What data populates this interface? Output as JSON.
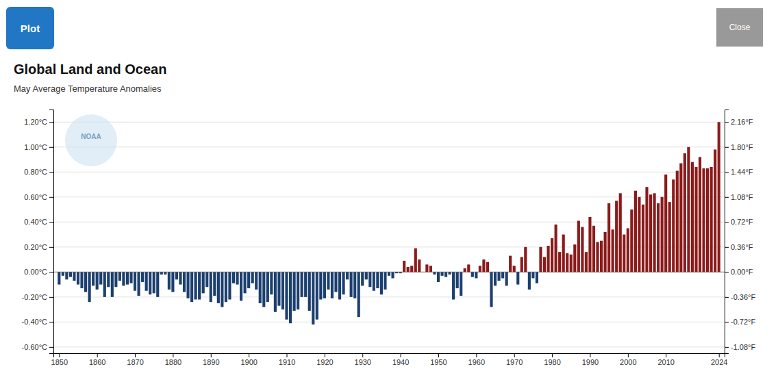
{
  "chart_data": {
    "type": "bar",
    "title": "Global Land and Ocean",
    "subtitle": "May Average Temperature Anomalies",
    "annotations": [
      "Plot",
      "Close",
      "NOAA"
    ],
    "grid": true,
    "xlim": [
      1848.5,
      2025.5
    ],
    "xticks": [
      1850,
      1860,
      1870,
      1880,
      1890,
      1900,
      1910,
      1920,
      1930,
      1940,
      1950,
      1960,
      1970,
      1980,
      1990,
      2000,
      2010,
      2024
    ],
    "ylim": [
      -0.65,
      1.3
    ],
    "yticks": [
      {
        "value": -0.6,
        "label": "-0.60°C"
      },
      {
        "value": -0.4,
        "label": "-0.40°C"
      },
      {
        "value": -0.2,
        "label": "-0.20°C"
      },
      {
        "value": 0.0,
        "label": "0.00°C"
      },
      {
        "value": 0.2,
        "label": "0.20°C"
      },
      {
        "value": 0.4,
        "label": "0.40°C"
      },
      {
        "value": 0.6,
        "label": "0.60°C"
      },
      {
        "value": 0.8,
        "label": "0.80°C"
      },
      {
        "value": 1.0,
        "label": "1.00°C"
      },
      {
        "value": 1.2,
        "label": "1.20°C"
      }
    ],
    "y2lim": [
      -1.17,
      2.34
    ],
    "y2ticks": [
      {
        "value": -1.08,
        "label": "-1.08°F"
      },
      {
        "value": -0.72,
        "label": "-0.72°F"
      },
      {
        "value": -0.36,
        "label": "-0.36°F"
      },
      {
        "value": 0.0,
        "label": "0.00°F"
      },
      {
        "value": 0.36,
        "label": "0.36°F"
      },
      {
        "value": 0.72,
        "label": "0.72°F"
      },
      {
        "value": 1.08,
        "label": "1.08°F"
      },
      {
        "value": 1.44,
        "label": "1.44°F"
      },
      {
        "value": 1.8,
        "label": "1.80°F"
      },
      {
        "value": 2.16,
        "label": "2.16°F"
      }
    ],
    "x": [
      1850,
      1851,
      1852,
      1853,
      1854,
      1855,
      1856,
      1857,
      1858,
      1859,
      1860,
      1861,
      1862,
      1863,
      1864,
      1865,
      1866,
      1867,
      1868,
      1869,
      1870,
      1871,
      1872,
      1873,
      1874,
      1875,
      1876,
      1877,
      1878,
      1879,
      1880,
      1881,
      1882,
      1883,
      1884,
      1885,
      1886,
      1887,
      1888,
      1889,
      1890,
      1891,
      1892,
      1893,
      1894,
      1895,
      1896,
      1897,
      1898,
      1899,
      1900,
      1901,
      1902,
      1903,
      1904,
      1905,
      1906,
      1907,
      1908,
      1909,
      1910,
      1911,
      1912,
      1913,
      1914,
      1915,
      1916,
      1917,
      1918,
      1919,
      1920,
      1921,
      1922,
      1923,
      1924,
      1925,
      1926,
      1927,
      1928,
      1929,
      1930,
      1931,
      1932,
      1933,
      1934,
      1935,
      1936,
      1937,
      1938,
      1939,
      1940,
      1941,
      1942,
      1943,
      1944,
      1945,
      1946,
      1947,
      1948,
      1949,
      1950,
      1951,
      1952,
      1953,
      1954,
      1955,
      1956,
      1957,
      1958,
      1959,
      1960,
      1961,
      1962,
      1963,
      1964,
      1965,
      1966,
      1967,
      1968,
      1969,
      1970,
      1971,
      1972,
      1973,
      1974,
      1975,
      1976,
      1977,
      1978,
      1979,
      1980,
      1981,
      1982,
      1983,
      1984,
      1985,
      1986,
      1987,
      1988,
      1989,
      1990,
      1991,
      1992,
      1993,
      1994,
      1995,
      1996,
      1997,
      1998,
      1999,
      2000,
      2001,
      2002,
      2003,
      2004,
      2005,
      2006,
      2007,
      2008,
      2009,
      2010,
      2011,
      2012,
      2013,
      2014,
      2015,
      2016,
      2017,
      2018,
      2019,
      2020,
      2021,
      2022,
      2023,
      2024
    ],
    "values": [
      -0.1,
      -0.03,
      -0.06,
      -0.04,
      -0.07,
      -0.1,
      -0.13,
      -0.16,
      -0.24,
      -0.11,
      -0.14,
      -0.1,
      -0.2,
      -0.12,
      -0.2,
      -0.12,
      -0.07,
      -0.11,
      -0.1,
      -0.09,
      -0.15,
      -0.19,
      -0.08,
      -0.15,
      -0.18,
      -0.17,
      -0.2,
      -0.02,
      -0.02,
      -0.14,
      -0.16,
      -0.06,
      -0.1,
      -0.16,
      -0.21,
      -0.24,
      -0.22,
      -0.22,
      -0.17,
      -0.12,
      -0.24,
      -0.19,
      -0.25,
      -0.28,
      -0.24,
      -0.22,
      -0.09,
      -0.1,
      -0.23,
      -0.17,
      -0.13,
      -0.09,
      -0.14,
      -0.25,
      -0.28,
      -0.24,
      -0.18,
      -0.32,
      -0.27,
      -0.3,
      -0.38,
      -0.41,
      -0.31,
      -0.3,
      -0.2,
      -0.2,
      -0.31,
      -0.42,
      -0.38,
      -0.22,
      -0.21,
      -0.14,
      -0.21,
      -0.16,
      -0.22,
      -0.18,
      -0.06,
      -0.2,
      -0.21,
      -0.36,
      -0.11,
      -0.06,
      -0.12,
      -0.15,
      -0.13,
      -0.18,
      -0.14,
      -0.03,
      -0.05,
      -0.01,
      -0.01,
      0.09,
      0.04,
      0.05,
      0.19,
      0.1,
      0.0,
      0.06,
      0.05,
      -0.02,
      -0.08,
      -0.03,
      -0.04,
      -0.02,
      -0.22,
      -0.13,
      -0.19,
      0.03,
      0.06,
      -0.04,
      -0.05,
      0.05,
      0.1,
      0.08,
      -0.28,
      -0.11,
      -0.07,
      -0.05,
      -0.11,
      0.13,
      0.05,
      -0.1,
      0.12,
      0.2,
      -0.14,
      -0.05,
      -0.09,
      0.2,
      0.12,
      0.21,
      0.27,
      0.38,
      0.16,
      0.3,
      0.15,
      0.14,
      0.22,
      0.41,
      0.36,
      0.16,
      0.44,
      0.37,
      0.24,
      0.25,
      0.32,
      0.55,
      0.34,
      0.57,
      0.63,
      0.3,
      0.35,
      0.5,
      0.65,
      0.6,
      0.54,
      0.68,
      0.62,
      0.63,
      0.55,
      0.6,
      0.78,
      0.56,
      0.74,
      0.81,
      0.87,
      0.95,
      1.0,
      0.88,
      0.84,
      0.92,
      0.83,
      0.83,
      0.84,
      0.98,
      1.2
    ],
    "colors": [
      "#1B3F6E",
      "#1B3F6E",
      "#1B3F6E",
      "#1B3F6E",
      "#1B3F6E",
      "#1B3F6E",
      "#1B3F6E",
      "#1B3F6E",
      "#1B3F6E",
      "#1B3F6E",
      "#1B3F6E",
      "#1B3F6E",
      "#1B3F6E",
      "#1B3F6E",
      "#1B3F6E",
      "#1B3F6E",
      "#1B3F6E",
      "#1B3F6E",
      "#1B3F6E",
      "#1B3F6E",
      "#1B3F6E",
      "#1B3F6E",
      "#1B3F6E",
      "#1B3F6E",
      "#1B3F6E",
      "#1B3F6E",
      "#1B3F6E",
      "#1B3F6E",
      "#1B3F6E",
      "#1B3F6E",
      "#1B3F6E",
      "#1B3F6E",
      "#1B3F6E",
      "#1B3F6E",
      "#1B3F6E",
      "#1B3F6E",
      "#1B3F6E",
      "#1B3F6E",
      "#1B3F6E",
      "#1B3F6E",
      "#1B3F6E",
      "#1B3F6E",
      "#1B3F6E",
      "#1B3F6E",
      "#1B3F6E",
      "#1B3F6E",
      "#1B3F6E",
      "#1B3F6E",
      "#1B3F6E",
      "#1B3F6E",
      "#1B3F6E",
      "#1B3F6E",
      "#1B3F6E",
      "#1B3F6E",
      "#1B3F6E",
      "#1B3F6E",
      "#1B3F6E",
      "#1B3F6E",
      "#1B3F6E",
      "#1B3F6E",
      "#1B3F6E",
      "#1B3F6E",
      "#1B3F6E",
      "#1B3F6E",
      "#1B3F6E",
      "#1B3F6E",
      "#1B3F6E",
      "#1B3F6E",
      "#1B3F6E",
      "#1B3F6E",
      "#1B3F6E",
      "#1B3F6E",
      "#1B3F6E",
      "#1B3F6E",
      "#1B3F6E",
      "#1B3F6E",
      "#1B3F6E",
      "#1B3F6E",
      "#1B3F6E",
      "#1B3F6E",
      "#1B3F6E",
      "#1B3F6E",
      "#1B3F6E",
      "#1B3F6E",
      "#1B3F6E",
      "#1B3F6E",
      "#1B3F6E",
      "#1B3F6E",
      "#1B3F6E",
      "#1B3F6E",
      "#1B3F6E",
      "#8B1A1A",
      "#8B1A1A",
      "#8B1A1A",
      "#8B1A1A",
      "#8B1A1A",
      "#8B1A1A",
      "#8B1A1A",
      "#8B1A1A",
      "#1B3F6E",
      "#1B3F6E",
      "#1B3F6E",
      "#1B3F6E",
      "#1B3F6E",
      "#1B3F6E",
      "#1B3F6E",
      "#1B3F6E",
      "#8B1A1A",
      "#8B1A1A",
      "#1B3F6E",
      "#1B3F6E",
      "#8B1A1A",
      "#8B1A1A",
      "#8B1A1A",
      "#1B3F6E",
      "#1B3F6E",
      "#1B3F6E",
      "#1B3F6E",
      "#1B3F6E",
      "#8B1A1A",
      "#8B1A1A",
      "#1B3F6E",
      "#8B1A1A",
      "#8B1A1A",
      "#1B3F6E",
      "#1B3F6E",
      "#1B3F6E",
      "#8B1A1A",
      "#8B1A1A",
      "#8B1A1A",
      "#8B1A1A",
      "#8B1A1A",
      "#8B1A1A",
      "#8B1A1A",
      "#8B1A1A",
      "#8B1A1A",
      "#8B1A1A",
      "#8B1A1A",
      "#8B1A1A",
      "#8B1A1A",
      "#8B1A1A",
      "#8B1A1A",
      "#8B1A1A",
      "#8B1A1A",
      "#8B1A1A",
      "#8B1A1A",
      "#8B1A1A",
      "#8B1A1A",
      "#8B1A1A",
      "#8B1A1A",
      "#8B1A1A",
      "#8B1A1A",
      "#8B1A1A",
      "#8B1A1A",
      "#8B1A1A",
      "#8B1A1A",
      "#8B1A1A",
      "#8B1A1A",
      "#8B1A1A",
      "#8B1A1A",
      "#8B1A1A",
      "#8B1A1A",
      "#8B1A1A",
      "#8B1A1A",
      "#8B1A1A",
      "#8B1A1A",
      "#8B1A1A",
      "#8B1A1A",
      "#8B1A1A",
      "#8B1A1A",
      "#8B1A1A",
      "#8B1A1A",
      "#8B1A1A",
      "#8B1A1A",
      "#8B1A1A"
    ]
  }
}
